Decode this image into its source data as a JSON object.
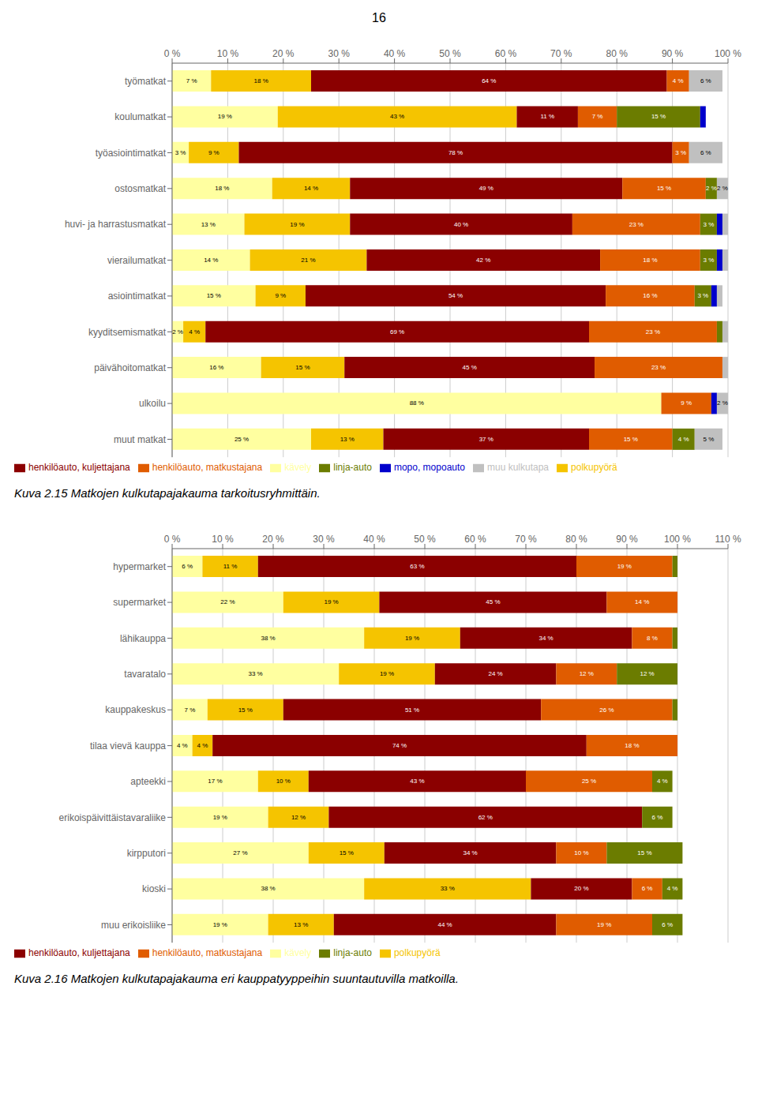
{
  "chart_data": [
    {
      "type": "bar",
      "orientation": "horizontal",
      "stacked": true,
      "data_labels": true,
      "grid": true,
      "legend": "bottom",
      "annotations": [
        "16"
      ],
      "title": "Kuva 2.15 Matkojen kulkutapajakauma tarkoitusryhmittäin.",
      "categories": [
        "työmatkat",
        "koulumatkat",
        "työasiointimatkat",
        "ostosmatkat",
        "huvi- ja harrastusmatkat",
        "vierailumatkat",
        "asiointimatkat",
        "kyyditsemismatkat",
        "päivähoitomatkat",
        "ulkoilu",
        "muut matkat"
      ],
      "xlim": [
        0,
        100
      ],
      "xticks": [
        {
          "value": 0,
          "label": "0 %"
        },
        {
          "value": 10,
          "label": "10 %"
        },
        {
          "value": 20,
          "label": "20 %"
        },
        {
          "value": 30,
          "label": "30 %"
        },
        {
          "value": 40,
          "label": "40 %"
        },
        {
          "value": 50,
          "label": "50 %"
        },
        {
          "value": 60,
          "label": "60 %"
        },
        {
          "value": 70,
          "label": "70 %"
        },
        {
          "value": 80,
          "label": "80 %"
        },
        {
          "value": 90,
          "label": "90 %"
        },
        {
          "value": 100,
          "label": "100 %"
        }
      ],
      "series": [
        {
          "name": "kävely",
          "color": "#ffffa0",
          "values": [
            7,
            19,
            3,
            18,
            13,
            14,
            15,
            2,
            16,
            88,
            25
          ],
          "value_labels": [
            "7 %",
            "19 %",
            "3 %",
            "18 %",
            "13 %",
            "14 %",
            "15 %",
            "2 %",
            "16 %",
            "88 %",
            "25 %"
          ]
        },
        {
          "name": "polkupyörä",
          "color": "#f5c400",
          "values": [
            18,
            43,
            9,
            14,
            19,
            21,
            9,
            4,
            15,
            0,
            13
          ],
          "value_labels": [
            "18 %",
            "43 %",
            "9 %",
            "14 %",
            "19 %",
            "21 %",
            "9 %",
            "4 %",
            "15 %",
            null,
            "13 %"
          ]
        },
        {
          "name": "henkilöauto, kuljettajana",
          "color": "#8b0000",
          "values": [
            64,
            11,
            78,
            49,
            40,
            42,
            54,
            69,
            45,
            0,
            37
          ],
          "value_labels": [
            "64 %",
            "11 %",
            "78 %",
            "49 %",
            "40 %",
            "42 %",
            "54 %",
            "69 %",
            "45 %",
            null,
            "37 %"
          ]
        },
        {
          "name": "henkilöauto, matkustajana",
          "color": "#e05c00",
          "values": [
            4,
            7,
            3,
            15,
            23,
            18,
            16,
            23,
            23,
            9,
            15
          ],
          "value_labels": [
            "4 %",
            "7 %",
            "3 %",
            "15 %",
            "23 %",
            "18 %",
            "16 %",
            "23 %",
            "23 %",
            "9 %",
            "15 %"
          ]
        },
        {
          "name": "linja-auto",
          "color": "#6b7c00",
          "values": [
            0,
            15,
            0,
            2,
            3,
            3,
            3,
            1,
            0,
            0,
            4
          ],
          "value_labels": [
            null,
            "15 %",
            null,
            "2 %",
            "3 %",
            "3 %",
            "3 %",
            null,
            null,
            null,
            "4 %"
          ]
        },
        {
          "name": "mopo, mopoauto",
          "color": "#0000cc",
          "values": [
            0,
            1,
            0,
            0,
            1,
            1,
            1,
            0,
            0,
            1,
            0
          ],
          "value_labels": [
            null,
            null,
            null,
            null,
            null,
            null,
            null,
            null,
            null,
            null,
            null
          ]
        },
        {
          "name": "muu kulkutapa",
          "color": "#c0c0c0",
          "values": [
            6,
            0,
            6,
            2,
            1,
            1,
            1,
            1,
            1,
            2,
            5
          ],
          "value_labels": [
            "6 %",
            null,
            "6 %",
            "2 %",
            null,
            null,
            null,
            null,
            null,
            "2 %",
            "5 %"
          ]
        }
      ]
    },
    {
      "type": "bar",
      "orientation": "horizontal",
      "stacked": true,
      "data_labels": true,
      "grid": true,
      "legend": "bottom",
      "title": "Kuva 2.16 Matkojen kulkutapajakauma eri kauppatyyppeihin suuntautuvilla matkoilla.",
      "categories": [
        "hypermarket",
        "supermarket",
        "lähikauppa",
        "tavaratalo",
        "kauppakeskus",
        "tilaa vievä kauppa",
        "apteekki",
        "erikoispäivittäistavaraliike",
        "kirpputori",
        "kioski",
        "muu erikoisliike"
      ],
      "xlim": [
        0,
        110
      ],
      "xticks": [
        {
          "value": 0,
          "label": "0 %"
        },
        {
          "value": 10,
          "label": "10 %"
        },
        {
          "value": 20,
          "label": "20 %"
        },
        {
          "value": 30,
          "label": "30 %"
        },
        {
          "value": 40,
          "label": "40 %"
        },
        {
          "value": 50,
          "label": "50 %"
        },
        {
          "value": 60,
          "label": "60 %"
        },
        {
          "value": 70,
          "label": "70 %"
        },
        {
          "value": 80,
          "label": "80 %"
        },
        {
          "value": 90,
          "label": "90 %"
        },
        {
          "value": 100,
          "label": "100 %"
        },
        {
          "value": 110,
          "label": "110 %"
        }
      ],
      "series": [
        {
          "name": "kävely",
          "color": "#ffffa0",
          "values": [
            6,
            22,
            38,
            33,
            7,
            4,
            17,
            19,
            27,
            38,
            19
          ],
          "value_labels": [
            "6 %",
            "22 %",
            "38 %",
            "33 %",
            "7 %",
            "4 %",
            "17 %",
            "19 %",
            "27 %",
            "38 %",
            "19 %"
          ]
        },
        {
          "name": "polkupyörä",
          "color": "#f5c400",
          "values": [
            11,
            19,
            19,
            19,
            15,
            4,
            10,
            12,
            15,
            33,
            13
          ],
          "value_labels": [
            "11 %",
            "19 %",
            "19 %",
            "19 %",
            "15 %",
            "4 %",
            "10 %",
            "12 %",
            "15 %",
            "33 %",
            "13 %"
          ]
        },
        {
          "name": "henkilöauto, kuljettajana",
          "color": "#8b0000",
          "values": [
            63,
            45,
            34,
            24,
            51,
            74,
            43,
            62,
            34,
            20,
            44
          ],
          "value_labels": [
            "63 %",
            "45 %",
            "34 %",
            "24 %",
            "51 %",
            "74 %",
            "43 %",
            "62 %",
            "34 %",
            "20 %",
            "44 %"
          ]
        },
        {
          "name": "henkilöauto, matkustajana",
          "color": "#e05c00",
          "values": [
            19,
            14,
            8,
            12,
            26,
            18,
            25,
            0,
            10,
            6,
            19
          ],
          "value_labels": [
            "19 %",
            "14 %",
            "8 %",
            "12 %",
            "26 %",
            "18 %",
            "25 %",
            null,
            "10 %",
            "6 %",
            "19 %"
          ]
        },
        {
          "name": "linja-auto",
          "color": "#6b7c00",
          "values": [
            1,
            0,
            1,
            12,
            1,
            0,
            4,
            6,
            15,
            4,
            6
          ],
          "value_labels": [
            null,
            null,
            null,
            "12 %",
            null,
            null,
            "4 %",
            "6 %",
            "15 %",
            "4 %",
            "6 %"
          ]
        }
      ]
    }
  ]
}
